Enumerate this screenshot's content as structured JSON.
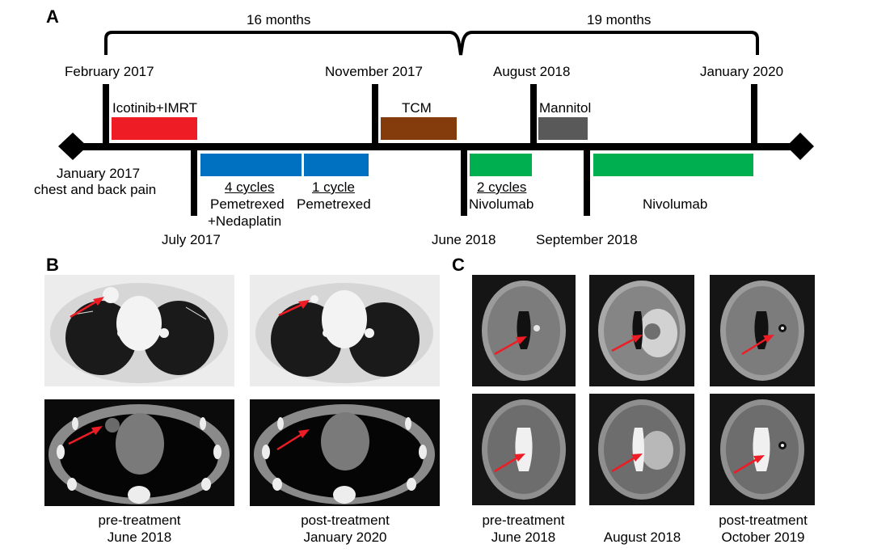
{
  "panel_a": {
    "label": "A",
    "spans": [
      "16 months",
      "19  months"
    ],
    "top_dates": [
      "February 2017",
      "November 2017",
      "August 2018",
      "January 2020"
    ],
    "bottom_dates": [
      "July 2017",
      "June 2018",
      "September 2018"
    ],
    "start_event": [
      "January 2017",
      "chest and back pain"
    ],
    "treatments": {
      "icotinib": "Icotinib+IMRT",
      "tcm": "TCM",
      "mannitol": "Mannitol",
      "cycles4": "4 cycles",
      "pem_ned": [
        "Pemetrexed",
        "+Nedaplatin"
      ],
      "cycle1": "1 cycle",
      "pem": "Pemetrexed",
      "cycles2": "2 cycles",
      "nivo1": "Nivolumab",
      "nivo2": "Nivolumab"
    },
    "colors": {
      "icotinib": "#ee1c24",
      "chemo": "#0070c0",
      "tcm": "#843c0c",
      "mannitol": "#595959",
      "nivolumab": "#00b050"
    }
  },
  "panel_b": {
    "label": "B",
    "captions": [
      [
        "pre-treatment",
        "June 2018"
      ],
      [
        "post-treatment",
        "January 2020"
      ]
    ]
  },
  "panel_c": {
    "label": "C",
    "captions": [
      [
        "pre-treatment",
        "June 2018"
      ],
      [
        "August 2018"
      ],
      [
        "post-treatment",
        "October 2019"
      ]
    ]
  },
  "arrow_color": "#ee1c24"
}
